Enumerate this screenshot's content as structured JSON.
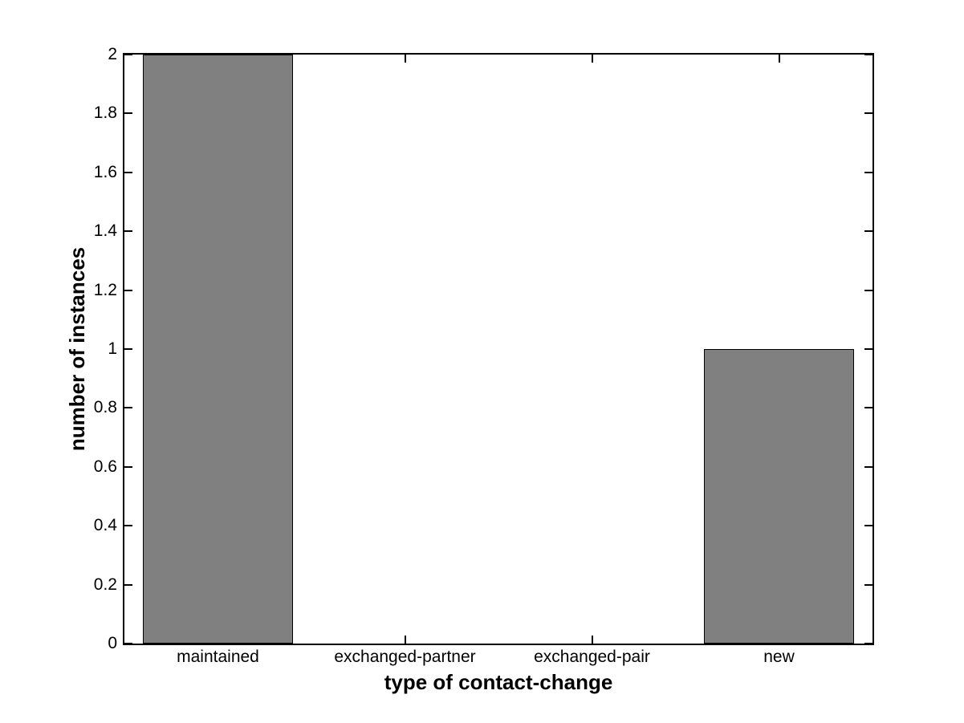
{
  "chart_data": {
    "type": "bar",
    "title": "",
    "categories": [
      "maintained",
      "exchanged-partner",
      "exchanged-pair",
      "new"
    ],
    "values": [
      2,
      0,
      0,
      1
    ],
    "xlabel": "type of contact-change",
    "ylabel": "number of instances",
    "ylim": [
      0,
      2
    ],
    "ytick_step": 0.2,
    "ytick_labels": [
      "0",
      "0.2",
      "0.4",
      "0.6",
      "0.8",
      "1",
      "1.2",
      "1.4",
      "1.6",
      "1.8",
      "2"
    ],
    "bar_width_fraction": 0.8,
    "bar_color": "#808080",
    "bar_edge_color": "#000000",
    "axis_color": "#000000",
    "background_color": "#ffffff",
    "grid": false,
    "legend": null
  }
}
